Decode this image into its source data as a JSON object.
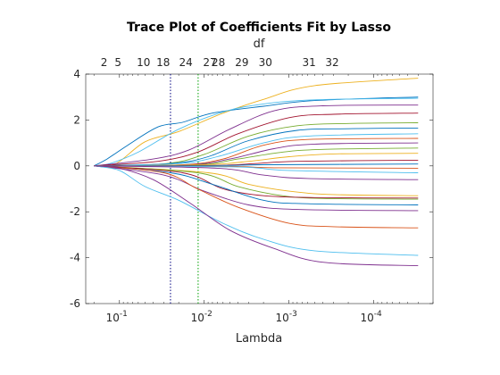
{
  "chart_data": {
    "type": "line",
    "title": "Trace Plot of Coefficients Fit by Lasso",
    "xlabel": "Lambda",
    "top_label": "df",
    "x_scale": "log",
    "x_reversed": true,
    "xlim": [
      0.25,
      2e-05
    ],
    "ylim": [
      -6,
      4
    ],
    "grid": false,
    "legend": "none",
    "xticks": [
      {
        "value": 0.1,
        "base": "10",
        "exp": "-1"
      },
      {
        "value": 0.01,
        "base": "10",
        "exp": "-2"
      },
      {
        "value": 0.001,
        "base": "10",
        "exp": "-3"
      },
      {
        "value": 0.0001,
        "base": "10",
        "exp": "-4"
      }
    ],
    "yticks": [
      4,
      2,
      0,
      -2,
      -4,
      -6
    ],
    "df_ticks": [
      {
        "label": "2",
        "lambda": 0.152
      },
      {
        "label": "5",
        "lambda": 0.104
      },
      {
        "label": "10",
        "lambda": 0.052
      },
      {
        "label": "18",
        "lambda": 0.0305
      },
      {
        "label": "24",
        "lambda": 0.0165
      },
      {
        "label": "27",
        "lambda": 0.0086
      },
      {
        "label": "28",
        "lambda": 0.0068
      },
      {
        "label": "29",
        "lambda": 0.0036
      },
      {
        "label": "30",
        "lambda": 0.0019
      },
      {
        "label": "31",
        "lambda": 0.00058
      },
      {
        "label": "32",
        "lambda": 0.00031
      }
    ],
    "reference_lines": [
      {
        "lambda": 0.025,
        "color": "#000080",
        "style": "dotted"
      },
      {
        "lambda": 0.0118,
        "color": "#00a000",
        "style": "dotted"
      }
    ],
    "series": [
      {
        "color": "#edb120",
        "values": [
          [
            0.2,
            0
          ],
          [
            0.11,
            0.1
          ],
          [
            0.05,
            1.05
          ],
          [
            0.02,
            1.5
          ],
          [
            0.006,
            2.3
          ],
          [
            0.002,
            2.9
          ],
          [
            0.0005,
            3.5
          ],
          [
            3e-05,
            3.82
          ]
        ]
      },
      {
        "color": "#0072bd",
        "values": [
          [
            0.2,
            0
          ],
          [
            0.14,
            0.3
          ],
          [
            0.08,
            0.9
          ],
          [
            0.035,
            1.7
          ],
          [
            0.018,
            1.9
          ],
          [
            0.008,
            2.3
          ],
          [
            0.002,
            2.6
          ],
          [
            0.0005,
            2.85
          ],
          [
            3e-05,
            3.0
          ]
        ]
      },
      {
        "color": "#4dbeee",
        "values": [
          [
            0.2,
            0
          ],
          [
            0.13,
            0.1
          ],
          [
            0.06,
            0.6
          ],
          [
            0.02,
            1.6
          ],
          [
            0.006,
            2.35
          ],
          [
            0.002,
            2.7
          ],
          [
            0.0005,
            2.88
          ],
          [
            3e-05,
            2.95
          ]
        ]
      },
      {
        "color": "#7e2f8e",
        "values": [
          [
            0.2,
            0
          ],
          [
            0.04,
            0.3
          ],
          [
            0.015,
            0.7
          ],
          [
            0.005,
            1.6
          ],
          [
            0.0015,
            2.4
          ],
          [
            0.0004,
            2.62
          ],
          [
            3e-05,
            2.65
          ]
        ]
      },
      {
        "color": "#a2142f",
        "values": [
          [
            0.2,
            0
          ],
          [
            0.035,
            0.2
          ],
          [
            0.012,
            0.6
          ],
          [
            0.004,
            1.4
          ],
          [
            0.001,
            2.1
          ],
          [
            0.0003,
            2.25
          ],
          [
            3e-05,
            2.3
          ]
        ]
      },
      {
        "color": "#77ac30",
        "values": [
          [
            0.2,
            0
          ],
          [
            0.028,
            0.1
          ],
          [
            0.01,
            0.5
          ],
          [
            0.003,
            1.3
          ],
          [
            0.0008,
            1.75
          ],
          [
            0.0002,
            1.85
          ],
          [
            3e-05,
            1.88
          ]
        ]
      },
      {
        "color": "#0072bd",
        "values": [
          [
            0.2,
            0
          ],
          [
            0.025,
            0.1
          ],
          [
            0.009,
            0.4
          ],
          [
            0.003,
            1.1
          ],
          [
            0.0008,
            1.55
          ],
          [
            0.0002,
            1.62
          ],
          [
            3e-05,
            1.65
          ]
        ]
      },
      {
        "color": "#4dbeee",
        "values": [
          [
            0.2,
            0
          ],
          [
            0.02,
            0.1
          ],
          [
            0.007,
            0.4
          ],
          [
            0.002,
            1.0
          ],
          [
            0.0006,
            1.3
          ],
          [
            3e-05,
            1.4
          ]
        ]
      },
      {
        "color": "#d95319",
        "values": [
          [
            0.2,
            0
          ],
          [
            0.018,
            0.05
          ],
          [
            0.006,
            0.3
          ],
          [
            0.002,
            0.9
          ],
          [
            0.0006,
            1.15
          ],
          [
            3e-05,
            1.2
          ]
        ]
      },
      {
        "color": "#7e2f8e",
        "values": [
          [
            0.2,
            0
          ],
          [
            0.015,
            0.05
          ],
          [
            0.005,
            0.3
          ],
          [
            0.0015,
            0.75
          ],
          [
            0.0005,
            0.95
          ],
          [
            3e-05,
            1.0
          ]
        ]
      },
      {
        "color": "#77ac30",
        "values": [
          [
            0.2,
            0
          ],
          [
            0.012,
            0.05
          ],
          [
            0.004,
            0.3
          ],
          [
            0.0012,
            0.6
          ],
          [
            0.0004,
            0.72
          ],
          [
            3e-05,
            0.78
          ]
        ]
      },
      {
        "color": "#edb120",
        "values": [
          [
            0.2,
            0
          ],
          [
            0.01,
            0.05
          ],
          [
            0.003,
            0.2
          ],
          [
            0.001,
            0.4
          ],
          [
            0.0003,
            0.52
          ],
          [
            3e-05,
            0.55
          ]
        ]
      },
      {
        "color": "#a2142f",
        "values": [
          [
            0.2,
            0
          ],
          [
            0.008,
            0.02
          ],
          [
            0.0025,
            0.1
          ],
          [
            0.0008,
            0.2
          ],
          [
            3e-05,
            0.25
          ]
        ]
      },
      {
        "color": "#0072bd",
        "values": [
          [
            0.2,
            0
          ],
          [
            0.006,
            0.02
          ],
          [
            0.002,
            0.05
          ],
          [
            3e-05,
            0.08
          ]
        ]
      },
      {
        "color": "#d95319",
        "values": [
          [
            0.2,
            0
          ],
          [
            0.005,
            -0.02
          ],
          [
            0.0015,
            -0.08
          ],
          [
            3e-05,
            -0.1
          ]
        ]
      },
      {
        "color": "#4dbeee",
        "values": [
          [
            0.2,
            0
          ],
          [
            0.004,
            -0.05
          ],
          [
            0.001,
            -0.2
          ],
          [
            3e-05,
            -0.3
          ]
        ]
      },
      {
        "color": "#7e2f8e",
        "values": [
          [
            0.2,
            0
          ],
          [
            0.007,
            -0.1
          ],
          [
            0.002,
            -0.4
          ],
          [
            0.0006,
            -0.55
          ],
          [
            3e-05,
            -0.6
          ]
        ]
      },
      {
        "color": "#edb120",
        "values": [
          [
            0.2,
            0
          ],
          [
            0.009,
            -0.3
          ],
          [
            0.003,
            -0.8
          ],
          [
            0.001,
            -1.1
          ],
          [
            0.0003,
            -1.25
          ],
          [
            3e-05,
            -1.3
          ]
        ]
      },
      {
        "color": "#77ac30",
        "values": [
          [
            0.2,
            0
          ],
          [
            0.012,
            -0.3
          ],
          [
            0.004,
            -0.9
          ],
          [
            0.0012,
            -1.3
          ],
          [
            0.0004,
            -1.42
          ],
          [
            3e-05,
            -1.45
          ]
        ]
      },
      {
        "color": "#a2142f",
        "values": [
          [
            0.2,
            0
          ],
          [
            0.018,
            -0.3
          ],
          [
            0.006,
            -1.0
          ],
          [
            0.002,
            -1.3
          ],
          [
            0.0005,
            -1.38
          ],
          [
            3e-05,
            -1.4
          ]
        ]
      },
      {
        "color": "#0072bd",
        "values": [
          [
            0.2,
            0
          ],
          [
            0.025,
            -0.3
          ],
          [
            0.008,
            -0.8
          ],
          [
            0.002,
            -1.5
          ],
          [
            0.0006,
            -1.65
          ],
          [
            3e-05,
            -1.7
          ]
        ]
      },
      {
        "color": "#7e2f8e",
        "values": [
          [
            0.2,
            0
          ],
          [
            0.03,
            -0.4
          ],
          [
            0.01,
            -1.1
          ],
          [
            0.003,
            -1.7
          ],
          [
            0.0008,
            -1.9
          ],
          [
            3e-05,
            -1.95
          ]
        ]
      },
      {
        "color": "#d95319",
        "values": [
          [
            0.2,
            0
          ],
          [
            0.03,
            -0.3
          ],
          [
            0.012,
            -1.0
          ],
          [
            0.004,
            -1.8
          ],
          [
            0.001,
            -2.5
          ],
          [
            0.0003,
            -2.65
          ],
          [
            3e-05,
            -2.7
          ]
        ]
      },
      {
        "color": "#4dbeee",
        "values": [
          [
            0.2,
            0
          ],
          [
            0.1,
            -0.2
          ],
          [
            0.05,
            -0.9
          ],
          [
            0.02,
            -1.5
          ],
          [
            0.006,
            -2.5
          ],
          [
            0.002,
            -3.2
          ],
          [
            0.0005,
            -3.7
          ],
          [
            3e-05,
            -3.9
          ]
        ]
      },
      {
        "color": "#7e2f8e",
        "values": [
          [
            0.2,
            0
          ],
          [
            0.1,
            -0.1
          ],
          [
            0.04,
            -0.6
          ],
          [
            0.015,
            -1.6
          ],
          [
            0.005,
            -2.8
          ],
          [
            0.0015,
            -3.6
          ],
          [
            0.0004,
            -4.2
          ],
          [
            3e-05,
            -4.35
          ]
        ]
      }
    ]
  }
}
